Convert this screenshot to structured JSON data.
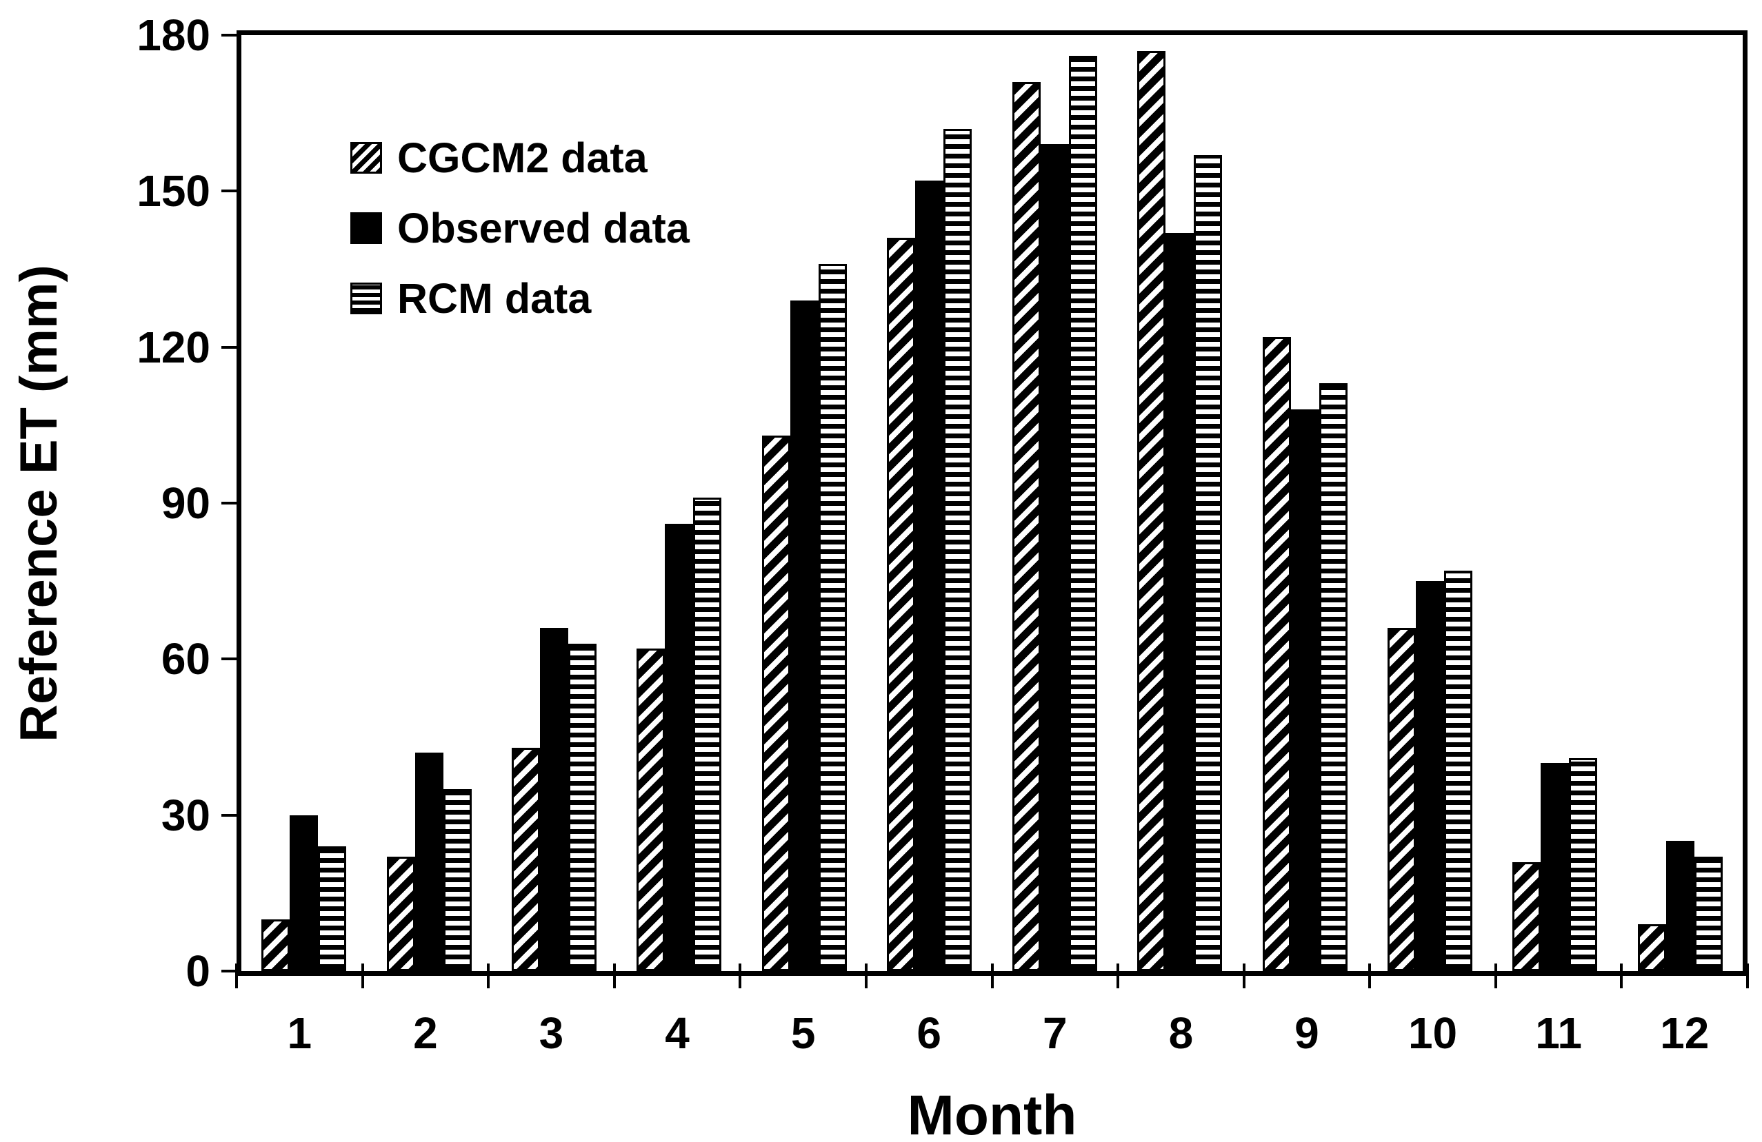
{
  "chart_data": {
    "type": "bar",
    "title": "",
    "xlabel": "Month",
    "ylabel": "Reference ET (mm)",
    "categories": [
      "1",
      "2",
      "3",
      "4",
      "5",
      "6",
      "7",
      "8",
      "9",
      "10",
      "11",
      "12"
    ],
    "series": [
      {
        "name": "CGCM2 data",
        "pattern": "diagonal-hatch",
        "values": [
          10,
          22,
          43,
          62,
          103,
          141,
          171,
          177,
          122,
          66,
          21,
          9
        ]
      },
      {
        "name": "Observed data",
        "pattern": "solid",
        "values": [
          30,
          42,
          66,
          86,
          129,
          152,
          159,
          142,
          108,
          75,
          40,
          25
        ]
      },
      {
        "name": "RCM data",
        "pattern": "horizontal-lines",
        "values": [
          24,
          35,
          63,
          91,
          136,
          162,
          176,
          157,
          113,
          77,
          41,
          22
        ]
      }
    ],
    "ylim": [
      0,
      180
    ],
    "yticks": [
      0,
      30,
      60,
      90,
      120,
      150,
      180
    ],
    "legend_position": "top-left-inside",
    "grid": false,
    "colors": {
      "foreground": "#000000",
      "background": "#ffffff"
    }
  }
}
